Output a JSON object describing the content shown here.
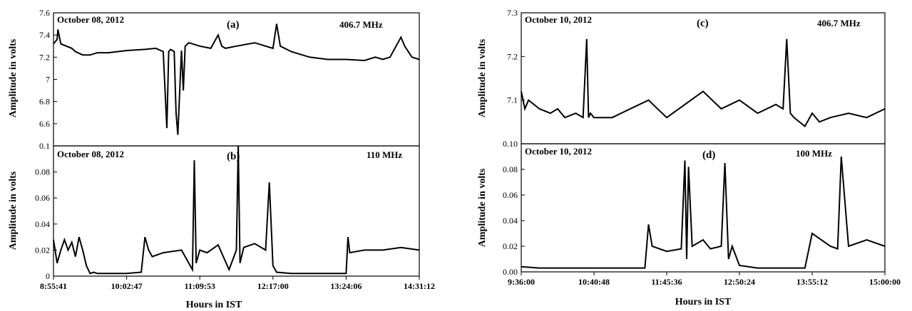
{
  "figure": {
    "left_xlabel": "Hours in IST",
    "right_xlabel": "Hours in IST"
  },
  "chart_data": [
    {
      "id": "a",
      "type": "line",
      "panel_label": "(a)",
      "date": "October 08, 2012",
      "frequency": "406.7 MHz",
      "ylabel": "Amplitude in volts",
      "ylim": [
        6.4,
        7.6
      ],
      "yticks": [
        "6.6",
        "6.8",
        "7",
        "7.2",
        "7.4",
        "7.6"
      ],
      "xlim": [
        "8:55:41",
        "14:31:12"
      ],
      "xticks": [],
      "x_units": "fraction of time axis",
      "series": [
        {
          "color": "#000000",
          "x": [
            0,
            0.01,
            0.012,
            0.02,
            0.05,
            0.06,
            0.08,
            0.1,
            0.12,
            0.15,
            0.2,
            0.25,
            0.28,
            0.3,
            0.31,
            0.315,
            0.32,
            0.33,
            0.335,
            0.34,
            0.35,
            0.355,
            0.36,
            0.37,
            0.38,
            0.4,
            0.43,
            0.45,
            0.46,
            0.47,
            0.5,
            0.55,
            0.6,
            0.61,
            0.62,
            0.65,
            0.7,
            0.75,
            0.8,
            0.85,
            0.88,
            0.9,
            0.92,
            0.95,
            0.96,
            0.98,
            1.0
          ],
          "y": [
            7.32,
            7.36,
            7.45,
            7.32,
            7.28,
            7.25,
            7.22,
            7.22,
            7.24,
            7.24,
            7.26,
            7.27,
            7.28,
            7.25,
            6.56,
            7.25,
            7.27,
            7.25,
            6.7,
            6.5,
            7.26,
            6.9,
            7.3,
            7.33,
            7.32,
            7.3,
            7.28,
            7.4,
            7.3,
            7.28,
            7.3,
            7.33,
            7.28,
            7.5,
            7.3,
            7.25,
            7.2,
            7.18,
            7.18,
            7.17,
            7.2,
            7.18,
            7.2,
            7.38,
            7.3,
            7.2,
            7.18
          ]
        }
      ]
    },
    {
      "id": "b",
      "type": "line",
      "panel_label": "(b)",
      "date": "October 08, 2012",
      "frequency": "110 MHz",
      "ylabel": "Amplitude in volts",
      "ylim": [
        0,
        0.1
      ],
      "yticks": [
        "0",
        "0.02",
        "0.04",
        "0.06",
        "0.08",
        "0.1"
      ],
      "xlim": [
        "8:55:41",
        "14:31:12"
      ],
      "xticks": [
        "8:55:41",
        "10:02:47",
        "11:09:53",
        "12:17:00",
        "13:24:06",
        "14:31:12"
      ],
      "x_units": "fraction of time axis",
      "series": [
        {
          "color": "#000000",
          "x": [
            0,
            0.01,
            0.02,
            0.03,
            0.04,
            0.05,
            0.06,
            0.07,
            0.08,
            0.09,
            0.1,
            0.11,
            0.12,
            0.15,
            0.2,
            0.24,
            0.25,
            0.26,
            0.27,
            0.3,
            0.35,
            0.38,
            0.385,
            0.39,
            0.4,
            0.42,
            0.45,
            0.48,
            0.5,
            0.505,
            0.51,
            0.52,
            0.55,
            0.58,
            0.59,
            0.6,
            0.61,
            0.65,
            0.7,
            0.75,
            0.8,
            0.805,
            0.81,
            0.85,
            0.9,
            0.95,
            1.0
          ],
          "y": [
            0.028,
            0.01,
            0.02,
            0.028,
            0.02,
            0.026,
            0.015,
            0.03,
            0.02,
            0.008,
            0.002,
            0.003,
            0.002,
            0.002,
            0.002,
            0.003,
            0.03,
            0.02,
            0.015,
            0.018,
            0.02,
            0.005,
            0.089,
            0.01,
            0.02,
            0.018,
            0.024,
            0.005,
            0.02,
            0.1,
            0.01,
            0.022,
            0.025,
            0.02,
            0.072,
            0.008,
            0.003,
            0.002,
            0.002,
            0.002,
            0.002,
            0.03,
            0.018,
            0.02,
            0.02,
            0.022,
            0.02
          ]
        }
      ]
    },
    {
      "id": "c",
      "type": "line",
      "panel_label": "(c)",
      "date": "October 10, 2012",
      "frequency": "406.7 MHz",
      "ylabel": "Amplitude in volts",
      "ylim": [
        7.0,
        7.3
      ],
      "yticks": [
        "7.1",
        "7.2",
        "7.3"
      ],
      "xlim": [
        "9:36:00",
        "15:00:00"
      ],
      "xticks": [],
      "x_units": "fraction of time axis",
      "series": [
        {
          "color": "#000000",
          "x": [
            0,
            0.01,
            0.02,
            0.05,
            0.08,
            0.1,
            0.12,
            0.15,
            0.17,
            0.18,
            0.185,
            0.19,
            0.2,
            0.25,
            0.3,
            0.35,
            0.4,
            0.45,
            0.5,
            0.55,
            0.6,
            0.65,
            0.7,
            0.72,
            0.73,
            0.74,
            0.75,
            0.78,
            0.8,
            0.82,
            0.85,
            0.9,
            0.95,
            1.0
          ],
          "y": [
            7.12,
            7.08,
            7.1,
            7.08,
            7.07,
            7.08,
            7.06,
            7.07,
            7.06,
            7.24,
            7.06,
            7.07,
            7.06,
            7.06,
            7.08,
            7.1,
            7.06,
            7.09,
            7.12,
            7.08,
            7.1,
            7.07,
            7.09,
            7.08,
            7.24,
            7.07,
            7.06,
            7.04,
            7.07,
            7.05,
            7.06,
            7.07,
            7.06,
            7.08
          ]
        }
      ]
    },
    {
      "id": "d",
      "type": "line",
      "panel_label": "(d)",
      "date": "October 10, 2012",
      "frequency": "100 MHz",
      "ylabel": "Amplitude in volts",
      "ylim": [
        0,
        0.1
      ],
      "yticks": [
        "0.00",
        "0.02",
        "0.04",
        "0.06",
        "0.08",
        "0.10"
      ],
      "xlim": [
        "9:36:00",
        "15:00:00"
      ],
      "xticks": [
        "9:36:00",
        "10:40:48",
        "11:45:36",
        "12:50:24",
        "13:55:12",
        "15:00:00"
      ],
      "x_units": "fraction of time axis",
      "series": [
        {
          "color": "#000000",
          "x": [
            0,
            0.05,
            0.1,
            0.15,
            0.2,
            0.25,
            0.3,
            0.34,
            0.35,
            0.36,
            0.4,
            0.44,
            0.45,
            0.455,
            0.46,
            0.47,
            0.5,
            0.52,
            0.55,
            0.56,
            0.57,
            0.58,
            0.6,
            0.65,
            0.7,
            0.75,
            0.78,
            0.8,
            0.85,
            0.87,
            0.88,
            0.9,
            0.95,
            1.0
          ],
          "y": [
            0.004,
            0.003,
            0.003,
            0.003,
            0.003,
            0.003,
            0.003,
            0.003,
            0.037,
            0.02,
            0.016,
            0.018,
            0.087,
            0.01,
            0.082,
            0.02,
            0.025,
            0.018,
            0.02,
            0.085,
            0.01,
            0.02,
            0.005,
            0.003,
            0.003,
            0.003,
            0.003,
            0.03,
            0.02,
            0.018,
            0.09,
            0.02,
            0.025,
            0.02
          ]
        }
      ]
    }
  ]
}
